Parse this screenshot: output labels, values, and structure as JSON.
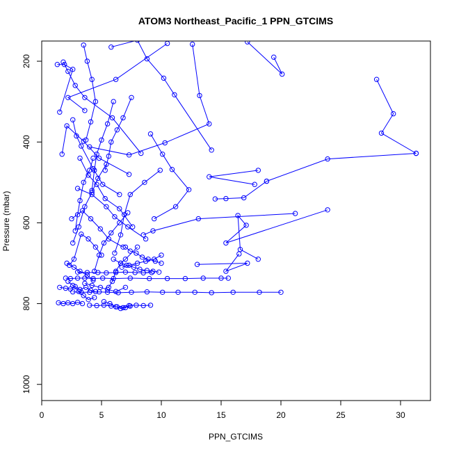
{
  "chart_data": {
    "type": "line",
    "title": "ATOM3 Northeast_Pacific_1 PPN_GTCIMS",
    "xlabel": "PPN_GTCIMS",
    "ylabel": "Pressure (mbar)",
    "xlim": [
      0,
      32.5
    ],
    "ylim": [
      1040,
      150
    ],
    "y_reversed": true,
    "x_ticks": [
      0,
      5,
      10,
      15,
      20,
      25,
      30
    ],
    "y_ticks": [
      200,
      400,
      600,
      800,
      1000
    ],
    "grid": false,
    "legend": "none",
    "marker": "open-circle",
    "color": "#0000ff",
    "series": [
      {
        "x": [
          28.0,
          29.4,
          28.4,
          31.3
        ],
        "y": [
          245,
          330,
          378,
          428
        ]
      },
      {
        "x": [
          31.3,
          23.9,
          18.8
        ],
        "y": [
          428,
          442,
          497
        ]
      },
      {
        "x": [
          18.8,
          16.9,
          15.4,
          14.5
        ],
        "y": [
          497,
          538,
          540,
          541
        ]
      },
      {
        "x": [
          18.1,
          14.0,
          17.8
        ],
        "y": [
          470,
          486,
          505
        ]
      },
      {
        "x": [
          19.4,
          20.1,
          17.2
        ],
        "y": [
          190,
          232,
          152
        ]
      },
      {
        "x": [
          23.9,
          15.4,
          17.1,
          16.4,
          16.6,
          18.1
        ],
        "y": [
          568,
          650,
          606,
          582,
          666,
          690
        ]
      },
      {
        "x": [
          21.2,
          13.1,
          9.3,
          8.5
        ],
        "y": [
          577,
          590,
          620,
          630
        ]
      },
      {
        "x": [
          16.5,
          15.4,
          17.2,
          13.0
        ],
        "y": [
          677,
          720,
          700,
          703
        ]
      },
      {
        "x": [
          10.5,
          6.2,
          2.2,
          3.6
        ],
        "y": [
          156,
          245,
          290,
          322
        ]
      },
      {
        "x": [
          1.3,
          1.9,
          2.6,
          1.5
        ],
        "y": [
          208,
          208,
          220,
          326
        ]
      },
      {
        "x": [
          14.2,
          11.1,
          10.2,
          8.8,
          8.0,
          5.8
        ],
        "y": [
          420,
          283,
          242,
          194,
          148,
          165
        ]
      },
      {
        "x": [
          12.6,
          13.2,
          14.0,
          10.3,
          7.3,
          4.0
        ],
        "y": [
          158,
          285,
          355,
          402,
          432,
          412
        ]
      },
      {
        "x": [
          9.1,
          10.1,
          10.9,
          12.3,
          11.2,
          9.4
        ],
        "y": [
          380,
          430,
          468,
          518,
          560,
          590
        ]
      },
      {
        "x": [
          8.3,
          5.9,
          3.6,
          2.8,
          2.2,
          1.8
        ],
        "y": [
          428,
          340,
          290,
          260,
          225,
          202
        ]
      },
      {
        "x": [
          7.3,
          4.8,
          3.5,
          2.1,
          1.7
        ],
        "y": [
          480,
          440,
          398,
          360,
          430
        ]
      },
      {
        "x": [
          6.5,
          5.1,
          4.3,
          3.3,
          2.9,
          2.6
        ],
        "y": [
          530,
          505,
          466,
          410,
          385,
          345
        ]
      },
      {
        "x": [
          7.6,
          6.5,
          5.3,
          4.6,
          3.9,
          3.2
        ],
        "y": [
          610,
          565,
          540,
          505,
          482,
          440
        ]
      },
      {
        "x": [
          8.7,
          7.2,
          6.1,
          5.4,
          4.2,
          3.0
        ],
        "y": [
          640,
          610,
          585,
          560,
          530,
          515
        ]
      },
      {
        "x": [
          6.8,
          5.6,
          4.9,
          4.1,
          3.4,
          2.5
        ],
        "y": [
          660,
          640,
          615,
          590,
          570,
          590
        ]
      },
      {
        "x": [
          5.0,
          4.5,
          3.9,
          3.3,
          2.7,
          2.3
        ],
        "y": [
          680,
          660,
          640,
          628,
          690,
          705
        ]
      },
      {
        "x": [
          3.5,
          3.8,
          4.2,
          4.5,
          4.1,
          3.7
        ],
        "y": [
          160,
          200,
          245,
          300,
          350,
          395
        ]
      },
      {
        "x": [
          4.3,
          4.0,
          3.5,
          3.2,
          3.0,
          2.8
        ],
        "y": [
          440,
          470,
          500,
          545,
          580,
          620
        ]
      },
      {
        "x": [
          5.4,
          4.7,
          4.2,
          3.6,
          3.1,
          2.6
        ],
        "y": [
          455,
          490,
          525,
          560,
          610,
          650
        ]
      },
      {
        "x": [
          6.0,
          5.5,
          5.0,
          4.6,
          4.4,
          4.2
        ],
        "y": [
          300,
          355,
          395,
          430,
          470,
          520
        ]
      },
      {
        "x": [
          7.5,
          6.8,
          6.3,
          5.8,
          5.6,
          5.3
        ],
        "y": [
          290,
          340,
          370,
          400,
          435,
          470
        ]
      },
      {
        "x": [
          9.9,
          8.6,
          7.4,
          6.9,
          6.6,
          6.1
        ],
        "y": [
          470,
          500,
          530,
          580,
          630,
          675
        ]
      },
      {
        "x": [
          8.0,
          7.0,
          6.6,
          6.2,
          5.9,
          5.6
        ],
        "y": [
          660,
          690,
          700,
          720,
          745,
          760
        ]
      },
      {
        "x": [
          7.2,
          6.5,
          5.8,
          5.2,
          4.8,
          4.4
        ],
        "y": [
          575,
          600,
          625,
          650,
          680,
          720
        ]
      },
      {
        "x": [
          2.0,
          2.4,
          3.0,
          3.6,
          4.3,
          5.1,
          6.0,
          7.4,
          9.0,
          10.5,
          12.0,
          13.5,
          15.0,
          15.6
        ],
        "y": [
          737,
          738,
          737,
          737,
          738,
          737,
          738,
          737,
          738,
          738,
          738,
          737,
          737,
          737
        ]
      },
      {
        "x": [
          2.6,
          3.3,
          4.0,
          4.8,
          5.5,
          6.4,
          7.5,
          8.8,
          10.1,
          11.4,
          12.8,
          14.2,
          16.0,
          18.2,
          20.0
        ],
        "y": [
          771,
          772,
          772,
          771,
          772,
          773,
          772,
          771,
          772,
          772,
          772,
          773,
          772,
          772,
          772
        ]
      },
      {
        "x": [
          3.0,
          3.8,
          4.7,
          5.4,
          6.2,
          7.0,
          7.8,
          8.5,
          9.2
        ],
        "y": [
          722,
          723,
          723,
          724,
          723,
          722,
          723,
          724,
          723
        ]
      },
      {
        "x": [
          1.5,
          2.0,
          2.4,
          2.8,
          3.2,
          3.7,
          4.1,
          4.5
        ],
        "y": [
          760,
          762,
          764,
          758,
          765,
          760,
          767,
          770
        ]
      },
      {
        "x": [
          1.4,
          1.8,
          2.2,
          2.6,
          3.0,
          3.4
        ],
        "y": [
          798,
          800,
          798,
          800,
          797,
          800
        ]
      },
      {
        "x": [
          4.0,
          4.6,
          5.2,
          5.8,
          6.3,
          6.8,
          7.3,
          7.9,
          8.5,
          9.1
        ],
        "y": [
          804,
          805,
          804,
          806,
          808,
          810,
          805,
          804,
          805,
          804
        ]
      },
      {
        "x": [
          5.2,
          5.7,
          6.2,
          6.6,
          7.0,
          7.4
        ],
        "y": [
          795,
          800,
          808,
          812,
          810,
          806
        ]
      },
      {
        "x": [
          2.2,
          2.6,
          3.1,
          3.5,
          3.9,
          4.4
        ],
        "y": [
          745,
          755,
          770,
          780,
          790,
          785
        ]
      },
      {
        "x": [
          3.6,
          4.2,
          4.9,
          5.5,
          6.2,
          7.0
        ],
        "y": [
          750,
          755,
          760,
          765,
          770,
          760
        ]
      },
      {
        "x": [
          2.1,
          2.7,
          3.2,
          3.8,
          4.3
        ],
        "y": [
          700,
          710,
          720,
          730,
          742
        ]
      },
      {
        "x": [
          6.0,
          6.6,
          7.1,
          7.7,
          8.2,
          8.8,
          9.3,
          9.8
        ],
        "y": [
          690,
          700,
          705,
          710,
          715,
          718,
          720,
          722
        ]
      },
      {
        "x": [
          7.0,
          7.4,
          7.9,
          8.4,
          8.9,
          9.5,
          10.0
        ],
        "y": [
          660,
          670,
          675,
          685,
          690,
          695,
          700
        ]
      },
      {
        "x": [
          10.0,
          9.4,
          8.7,
          8.0,
          7.3,
          6.7
        ],
        "y": [
          680,
          690,
          695,
          700,
          705,
          710
        ]
      }
    ]
  }
}
